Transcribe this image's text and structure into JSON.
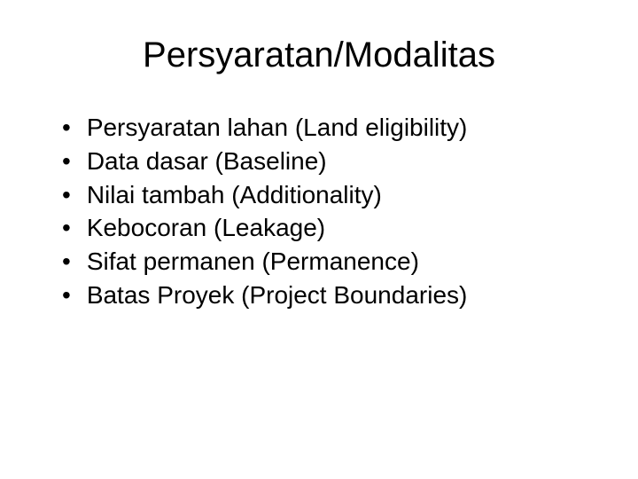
{
  "slide": {
    "title": "Persyaratan/Modalitas",
    "title_fontsize": 40,
    "title_color": "#000000",
    "bullet_marker": "•",
    "bullets": [
      "Persyaratan lahan (Land eligibility)",
      "Data dasar (Baseline)",
      "Nilai tambah (Additionality)",
      "Kebocoran (Leakage)",
      "Sifat permanen (Permanence)",
      "Batas Proyek (Project Boundaries)"
    ],
    "bullet_fontsize": 28,
    "bullet_color": "#000000",
    "background_color": "#ffffff",
    "font_family": "Arial"
  }
}
